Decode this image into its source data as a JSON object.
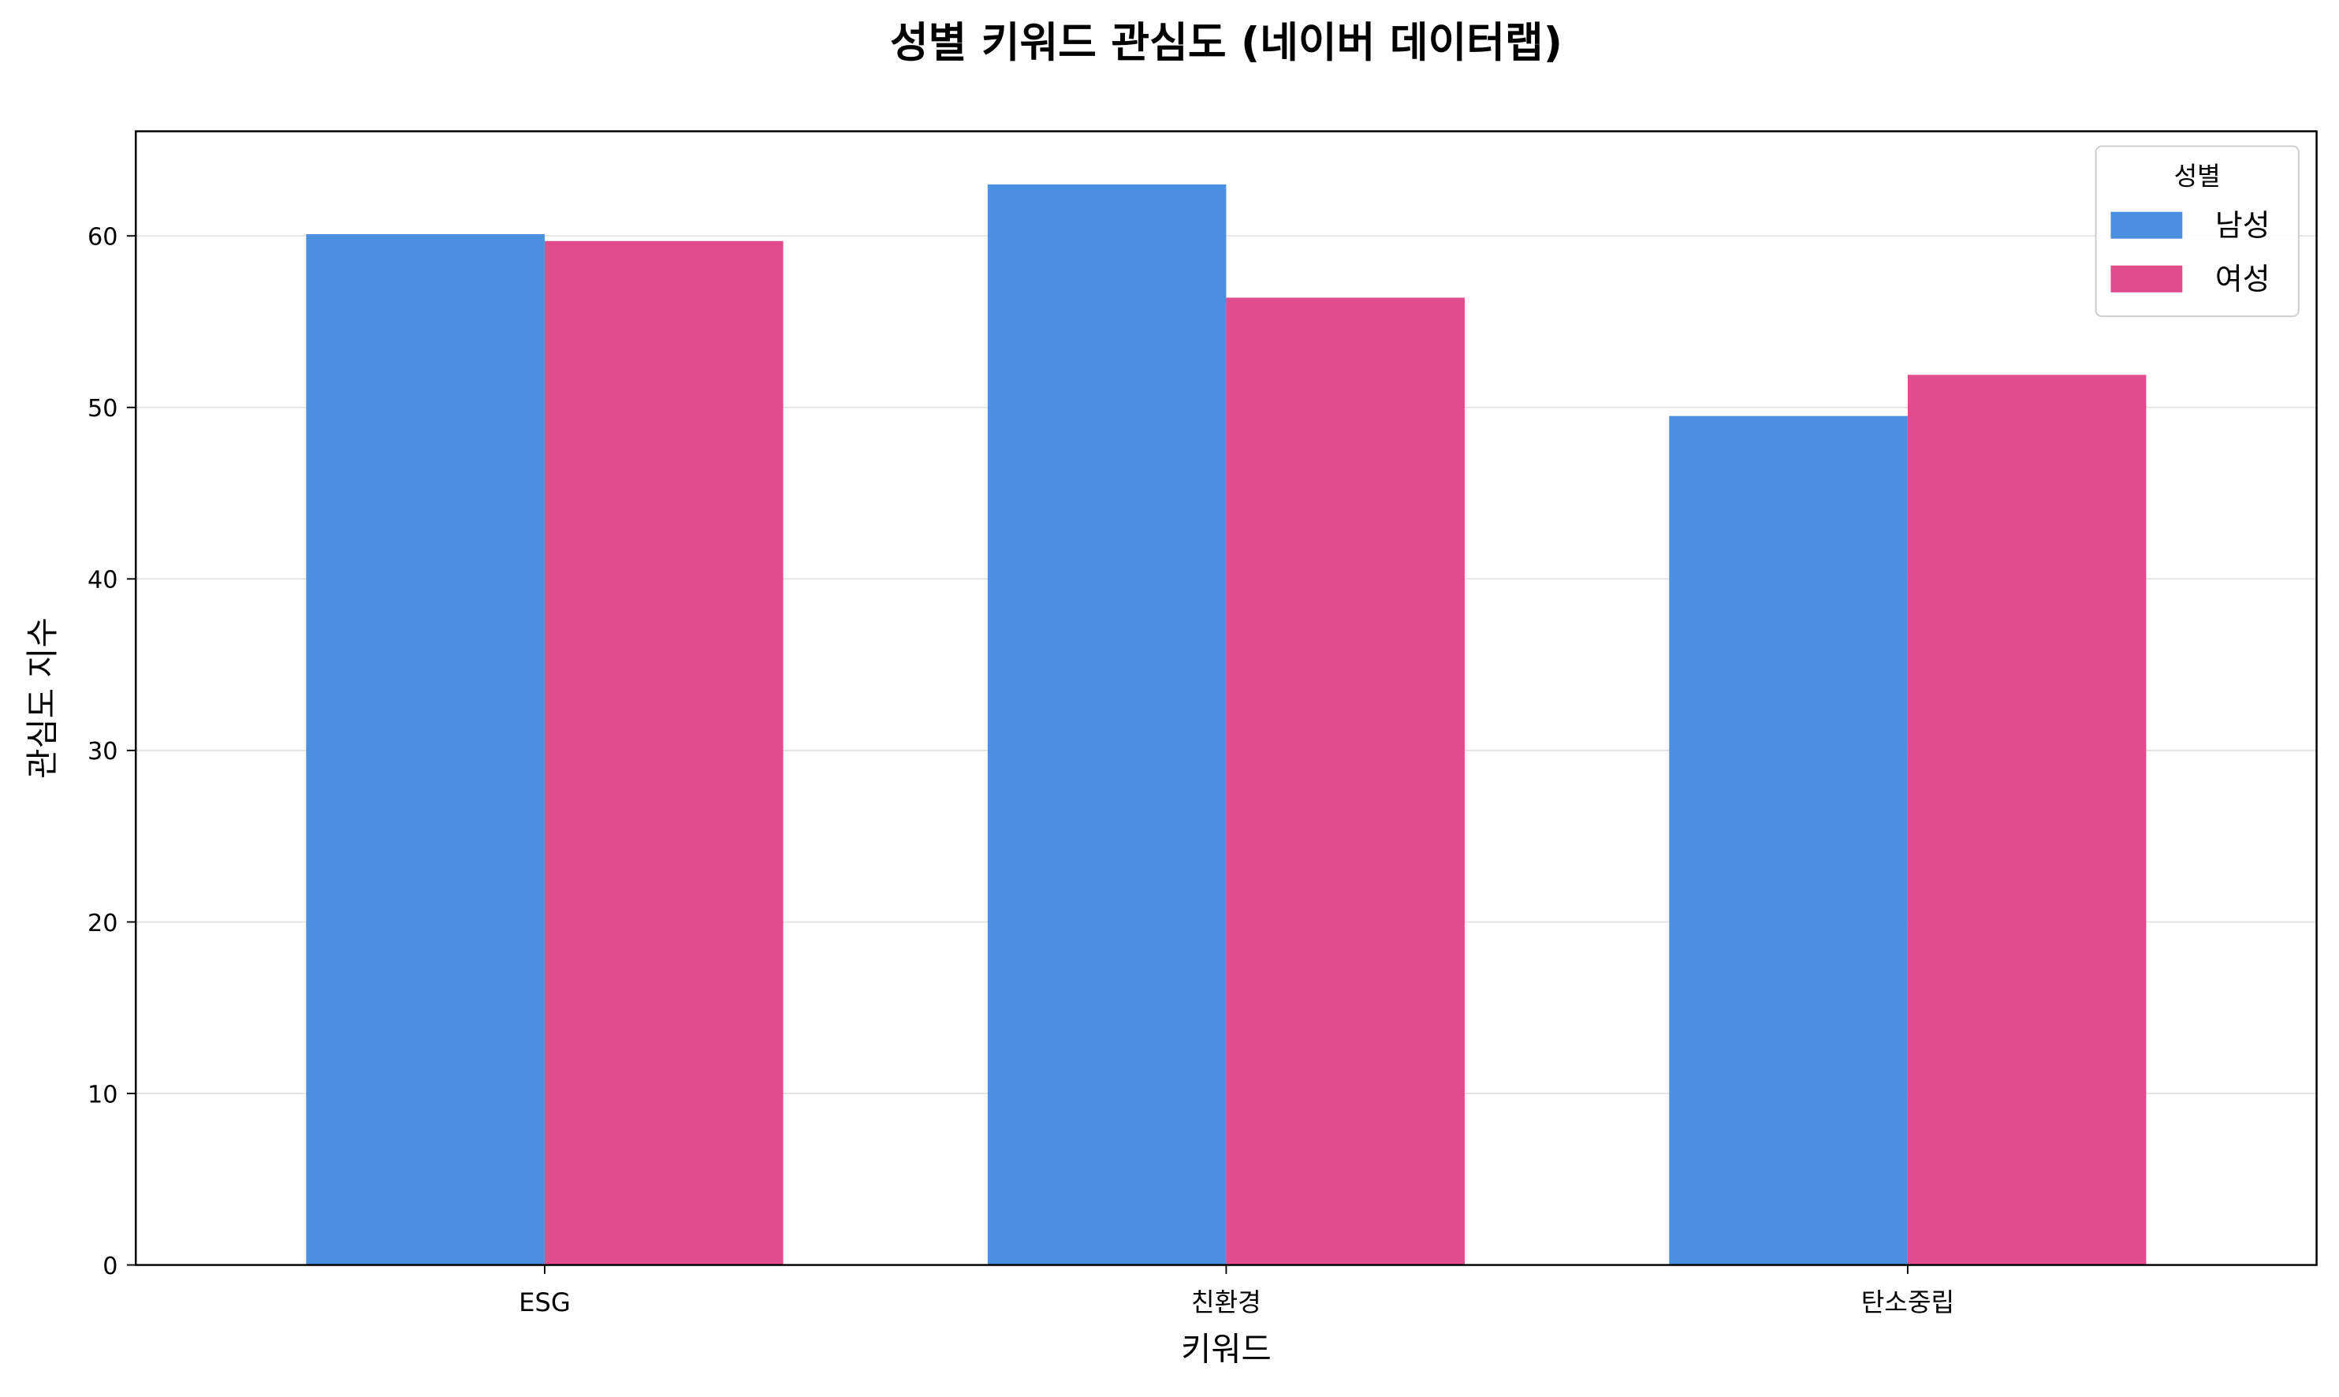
{
  "chart_data": {
    "type": "bar",
    "title": "성별 키워드 관심도 (네이버 데이터랩)",
    "x_label": "키워드",
    "y_label": "관심도 지수",
    "categories": [
      "ESG",
      "친환경",
      "탄소중립"
    ],
    "series": [
      {
        "name": "남성",
        "color": "#4a8fe0",
        "values": [
          60.1,
          63.0,
          49.5
        ]
      },
      {
        "name": "여성",
        "color": "#e04c8c",
        "values": [
          59.7,
          56.4,
          51.9
        ]
      }
    ],
    "ylim": [
      0,
      66.1
    ],
    "yticks": [
      0,
      10,
      20,
      30,
      40,
      50,
      60
    ],
    "grid": true,
    "legend_title": "성별",
    "legend_position": "upper-right"
  }
}
